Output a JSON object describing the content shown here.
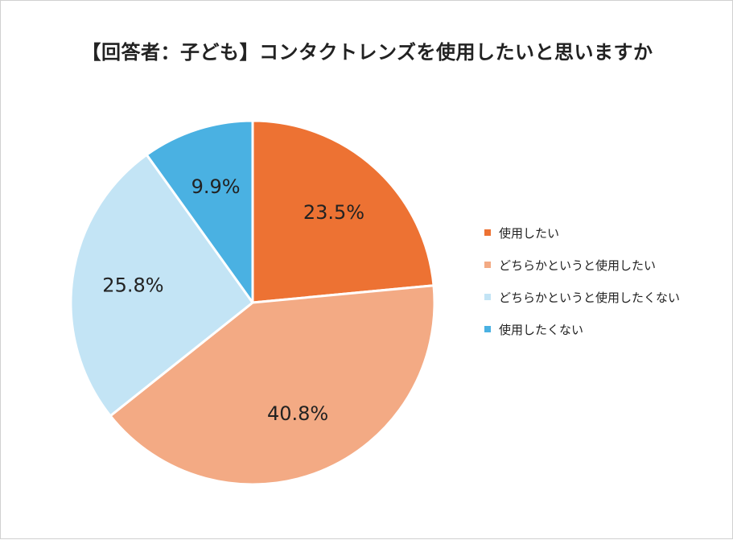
{
  "chart_data": {
    "type": "pie",
    "title": "【回答者：子ども】コンタクトレンズを使用したいと思いますか",
    "slices": [
      {
        "name": "使用したい",
        "value": 23.5,
        "label": "23.5%",
        "color": "#ED7233"
      },
      {
        "name": "どちらかというと使用したい",
        "value": 40.8,
        "label": "40.8%",
        "color": "#F3AA84"
      },
      {
        "name": "どちらかというと使用したくない",
        "value": 25.8,
        "label": "25.8%",
        "color": "#C3E4F5"
      },
      {
        "name": "使用したくない",
        "value": 9.9,
        "label": "9.9%",
        "color": "#4AB1E2"
      }
    ],
    "legend_position": "right"
  }
}
